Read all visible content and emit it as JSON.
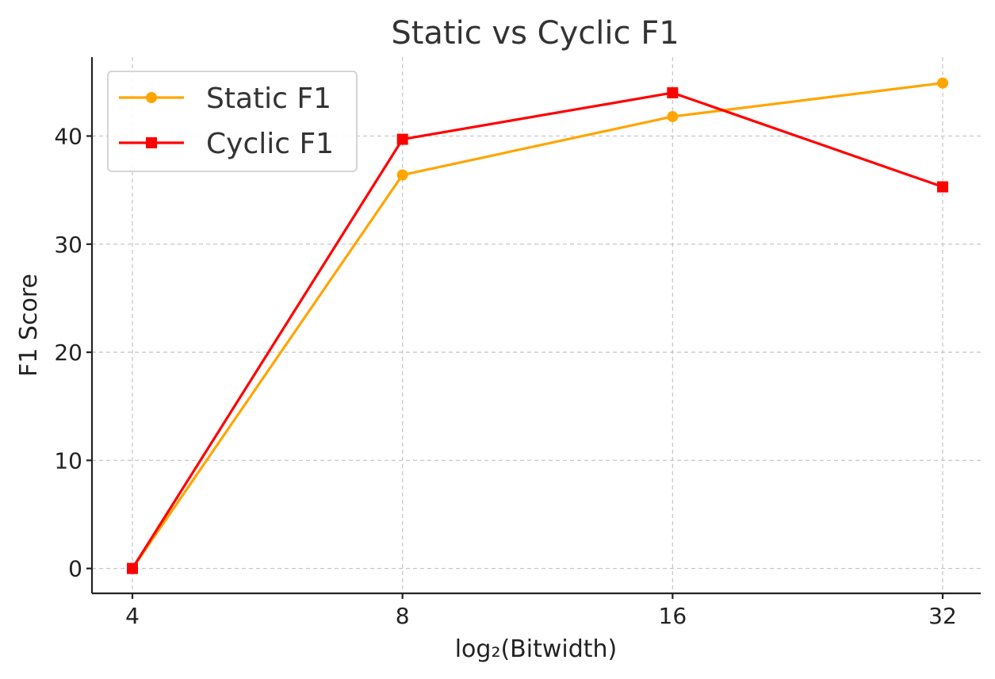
{
  "chart_data": {
    "type": "line",
    "title": "Static vs Cyclic F1",
    "xlabel": "log₂(Bitwidth)",
    "ylabel": "F1 Score",
    "categories": [
      "4",
      "8",
      "16",
      "32"
    ],
    "ylim": [
      -2.3,
      47.3
    ],
    "yticks": [
      0,
      10,
      20,
      30,
      40
    ],
    "grid": true,
    "legend_position": "top-left",
    "series": [
      {
        "name": "Static F1",
        "values": [
          0.0,
          36.4,
          41.8,
          44.9
        ],
        "color": "#FFA500",
        "marker": "circle"
      },
      {
        "name": "Cyclic F1",
        "values": [
          0.0,
          39.7,
          44.0,
          35.3
        ],
        "color": "#FF0000",
        "marker": "square"
      }
    ]
  }
}
